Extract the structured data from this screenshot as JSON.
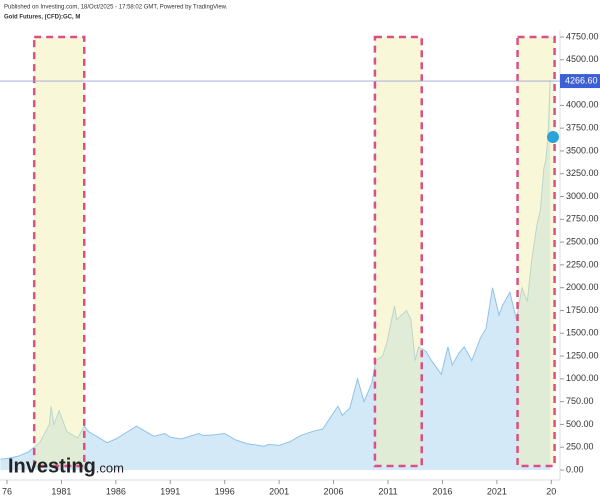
{
  "chart_data": {
    "type": "area",
    "header": "Published on Investing.com, 18/Oct/2025 - 17:58:02 GMT, Powered by TradingView.",
    "title": "Gold Futures, (CFD):GC, M",
    "watermark": "Investing",
    "watermark_suffix": ".com",
    "x": [
      1975.4,
      1976,
      1977,
      1978,
      1979,
      1979.9,
      1980.05,
      1980.3,
      1980.8,
      1981.5,
      1982.5,
      1983.1,
      1983.5,
      1984.5,
      1985.2,
      1986,
      1987.9,
      1988.5,
      1989.5,
      1990.5,
      1991,
      1992,
      1993.6,
      1994,
      1995,
      1996,
      1997,
      1998,
      1999.6,
      2000,
      2001,
      2002,
      2003,
      2004,
      2005,
      2006.4,
      2006.8,
      2007.5,
      2008.2,
      2008.8,
      2009.5,
      2009.9,
      2010.5,
      2010.9,
      2011.6,
      2011.8,
      2012.7,
      2013.1,
      2013.5,
      2013.8,
      2014.5,
      2015,
      2015.9,
      2016.5,
      2016.9,
      2017.5,
      2018,
      2018.7,
      2019.5,
      2020,
      2020.6,
      2021.2,
      2021.5,
      2022.2,
      2022.8,
      2023.3,
      2023.8,
      2024.2,
      2024.7,
      2025.0,
      2025.3,
      2025.5,
      2025.7,
      2025.9
    ],
    "values": [
      120,
      125,
      150,
      200,
      300,
      500,
      700,
      500,
      650,
      420,
      350,
      480,
      420,
      350,
      300,
      340,
      480,
      440,
      370,
      400,
      360,
      340,
      400,
      380,
      385,
      400,
      330,
      290,
      260,
      280,
      270,
      310,
      380,
      420,
      450,
      700,
      600,
      680,
      1000,
      750,
      950,
      1200,
      1250,
      1400,
      1800,
      1650,
      1750,
      1650,
      1200,
      1350,
      1300,
      1200,
      1050,
      1350,
      1150,
      1280,
      1350,
      1200,
      1450,
      1550,
      2000,
      1700,
      1800,
      1950,
      1650,
      2000,
      1850,
      2300,
      2700,
      2850,
      3300,
      3400,
      3650,
      4270
    ],
    "color": "#8ec3ea",
    "fill": "#d4e9f8",
    "xlim": [
      1975.36,
      2026.8
    ],
    "ylim": [
      0,
      4750
    ],
    "xticks": [
      {
        "value": 1976,
        "label": "76"
      },
      1981,
      1986,
      1991,
      1996,
      2001,
      2006,
      2011,
      2016,
      2021,
      {
        "value": 2026,
        "label": "20"
      }
    ],
    "yticks": [
      {
        "value": 0,
        "label": "0.00"
      },
      {
        "value": 250,
        "label": "250.00"
      },
      {
        "value": 500,
        "label": "500.00"
      },
      {
        "value": 750,
        "label": "750.00"
      },
      {
        "value": 1000,
        "label": "1000.00"
      },
      {
        "value": 1250,
        "label": "1250.00"
      },
      {
        "value": 1500,
        "label": "1500.00"
      },
      {
        "value": 1750,
        "label": "1750.00"
      },
      {
        "value": 2000,
        "label": "2000.00"
      },
      {
        "value": 2250,
        "label": "2250.00"
      },
      {
        "value": 2500,
        "label": "2500.00"
      },
      {
        "value": 2750,
        "label": "2750.00"
      },
      {
        "value": 3000,
        "label": "3000.00"
      },
      {
        "value": 3250,
        "label": "3250.00"
      },
      {
        "value": 3500,
        "label": "3500.00"
      },
      {
        "value": 3750,
        "label": "3750.00"
      },
      {
        "value": 4000,
        "label": "4000.00"
      },
      {
        "value": 4250,
        "label": "4250.00"
      },
      {
        "value": 4500,
        "label": "4500.00"
      },
      {
        "value": 4750,
        "label": "4750.00"
      }
    ],
    "last_price": {
      "value": 4266.6,
      "label": "4266.60"
    },
    "highlights": [
      [
        1978.5,
        1983.1
      ],
      [
        2009.8,
        2014.1
      ],
      [
        2022.9,
        2026.3
      ]
    ]
  }
}
